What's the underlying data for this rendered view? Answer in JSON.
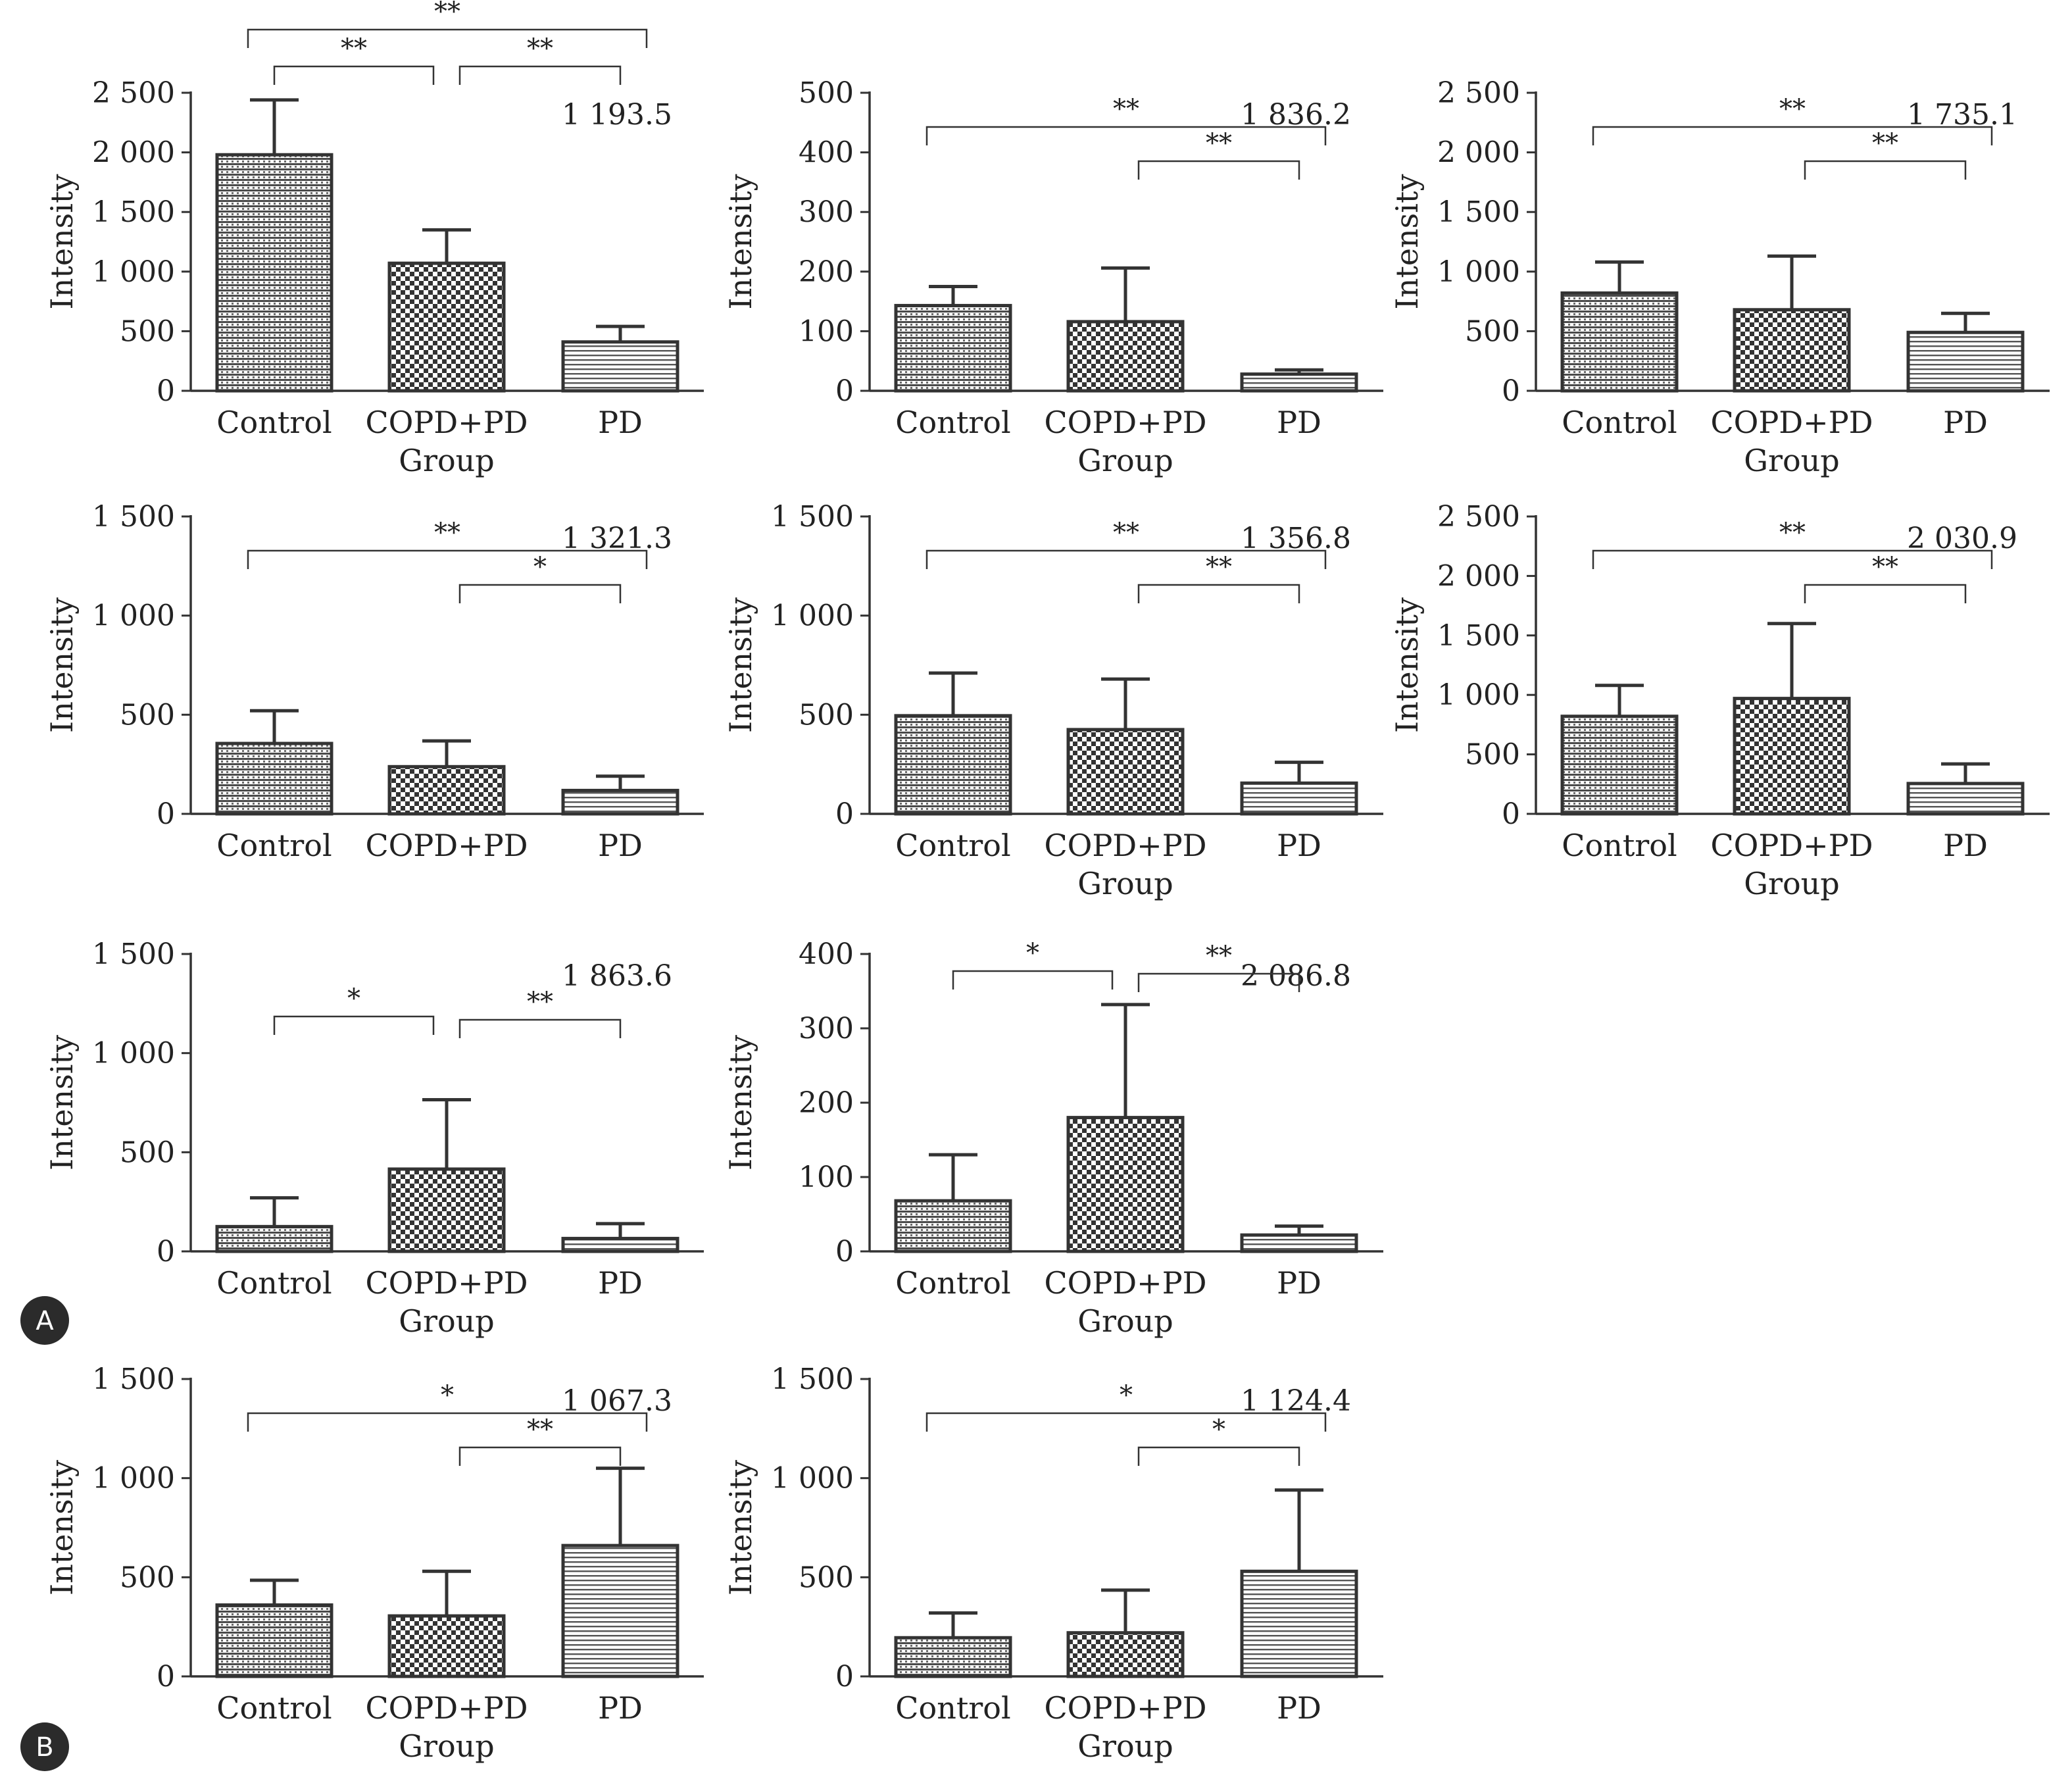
{
  "colors": {
    "ink": "#333333",
    "dots": "#3a3a3a",
    "bg": "#ffffff"
  },
  "panel_labels": [
    "A",
    "B"
  ],
  "chart_data": [
    {
      "type": "bar",
      "categories": [
        "Control",
        "COPD+PD",
        "PD"
      ],
      "xlabel": "Group",
      "ylabel": "Intensity",
      "ylim": [
        0,
        2500
      ],
      "yticks": [
        0,
        500,
        1000,
        1500,
        2000,
        2500
      ],
      "yticklabels": [
        "0",
        "500",
        "1 000",
        "1 500",
        "2 000",
        "2 500"
      ],
      "values": [
        1980,
        1070,
        410
      ],
      "errors": [
        460,
        280,
        130
      ],
      "annotation": "1 193.5",
      "significance": [
        {
          "from": 0,
          "to": 2,
          "label": "**"
        },
        {
          "from": 0,
          "to": 1,
          "label": "**"
        },
        {
          "from": 1,
          "to": 2,
          "label": "**"
        }
      ]
    },
    {
      "type": "bar",
      "categories": [
        "Control",
        "COPD+PD",
        "PD"
      ],
      "xlabel": "Group",
      "ylabel": "Intensity",
      "ylim": [
        0,
        500
      ],
      "yticks": [
        0,
        100,
        200,
        300,
        400,
        500
      ],
      "yticklabels": [
        "0",
        "100",
        "200",
        "300",
        "400",
        "500"
      ],
      "values": [
        143,
        116,
        28
      ],
      "errors": [
        32,
        90,
        7
      ],
      "annotation": "1 836.2",
      "significance": [
        {
          "from": 0,
          "to": 2,
          "label": "**"
        },
        {
          "from": 1,
          "to": 2,
          "label": "**"
        }
      ]
    },
    {
      "type": "bar",
      "categories": [
        "Control",
        "COPD+PD",
        "PD"
      ],
      "xlabel": "Group",
      "ylabel": "Intensity",
      "ylim": [
        0,
        2500
      ],
      "yticks": [
        0,
        500,
        1000,
        1500,
        2000,
        2500
      ],
      "yticklabels": [
        "0",
        "500",
        "1 000",
        "1 500",
        "2 000",
        "2 500"
      ],
      "values": [
        820,
        680,
        490
      ],
      "errors": [
        260,
        450,
        160
      ],
      "annotation": "1 735.1",
      "significance": [
        {
          "from": 0,
          "to": 2,
          "label": "**"
        },
        {
          "from": 1,
          "to": 2,
          "label": "**"
        }
      ]
    },
    {
      "type": "bar",
      "categories": [
        "Control",
        "COPD+PD",
        "PD"
      ],
      "xlabel": "",
      "ylabel": "Intensity",
      "ylim": [
        0,
        1500
      ],
      "yticks": [
        0,
        500,
        1000,
        1500
      ],
      "yticklabels": [
        "0",
        "500",
        "1 000",
        "1 500"
      ],
      "values": [
        355,
        238,
        118
      ],
      "errors": [
        165,
        130,
        72
      ],
      "annotation": "1 321.3",
      "significance": [
        {
          "from": 0,
          "to": 2,
          "label": "**"
        },
        {
          "from": 1,
          "to": 2,
          "label": "*"
        }
      ]
    },
    {
      "type": "bar",
      "categories": [
        "Control",
        "COPD+PD",
        "PD"
      ],
      "xlabel": "Group",
      "ylabel": "Intensity",
      "ylim": [
        0,
        1500
      ],
      "yticks": [
        0,
        500,
        1000,
        1500
      ],
      "yticklabels": [
        "0",
        "500",
        "1 000",
        "1 500"
      ],
      "values": [
        495,
        425,
        155
      ],
      "errors": [
        215,
        255,
        105
      ],
      "annotation": "1 356.8",
      "significance": [
        {
          "from": 0,
          "to": 2,
          "label": "**"
        },
        {
          "from": 1,
          "to": 2,
          "label": "**"
        }
      ]
    },
    {
      "type": "bar",
      "categories": [
        "Control",
        "COPD+PD",
        "PD"
      ],
      "xlabel": "Group",
      "ylabel": "Intensity",
      "ylim": [
        0,
        2500
      ],
      "yticks": [
        0,
        500,
        1000,
        1500,
        2000,
        2500
      ],
      "yticklabels": [
        "0",
        "500",
        "1 000",
        "1 500",
        "2 000",
        "2 500"
      ],
      "values": [
        820,
        970,
        255
      ],
      "errors": [
        260,
        630,
        165
      ],
      "annotation": "2 030.9",
      "significance": [
        {
          "from": 0,
          "to": 2,
          "label": "**"
        },
        {
          "from": 1,
          "to": 2,
          "label": "**"
        }
      ]
    },
    {
      "type": "bar",
      "categories": [
        "Control",
        "COPD+PD",
        "PD"
      ],
      "xlabel": "Group",
      "ylabel": "Intensity",
      "ylim": [
        0,
        1500
      ],
      "yticks": [
        0,
        500,
        1000,
        1500
      ],
      "yticklabels": [
        "0",
        "500",
        "1 000",
        "1 500"
      ],
      "values": [
        125,
        415,
        65
      ],
      "errors": [
        145,
        350,
        75
      ],
      "annotation": "1 863.6",
      "significance": [
        {
          "from": 0,
          "to": 1,
          "label": "*"
        },
        {
          "from": 1,
          "to": 2,
          "label": "**"
        }
      ]
    },
    {
      "type": "bar",
      "categories": [
        "Control",
        "COPD+PD",
        "PD"
      ],
      "xlabel": "Group",
      "ylabel": "Intensity",
      "ylim": [
        0,
        400
      ],
      "yticks": [
        0,
        100,
        200,
        300,
        400
      ],
      "yticklabels": [
        "0",
        "100",
        "200",
        "300",
        "400"
      ],
      "values": [
        68,
        180,
        22
      ],
      "errors": [
        62,
        152,
        12
      ],
      "annotation": "2 086.8",
      "significance": [
        {
          "from": 0,
          "to": 1,
          "label": "*"
        },
        {
          "from": 1,
          "to": 2,
          "label": "**"
        }
      ]
    },
    {
      "type": "bar",
      "categories": [
        "Control",
        "COPD+PD",
        "PD"
      ],
      "xlabel": "Group",
      "ylabel": "Intensity",
      "ylim": [
        0,
        1500
      ],
      "yticks": [
        0,
        500,
        1000,
        1500
      ],
      "yticklabels": [
        "0",
        "500",
        "1 000",
        "1 500"
      ],
      "values": [
        360,
        305,
        660
      ],
      "errors": [
        125,
        225,
        390
      ],
      "annotation": "1 067.3",
      "significance": [
        {
          "from": 0,
          "to": 2,
          "label": "*"
        },
        {
          "from": 1,
          "to": 2,
          "label": "**"
        }
      ]
    },
    {
      "type": "bar",
      "categories": [
        "Control",
        "COPD+PD",
        "PD"
      ],
      "xlabel": "Group",
      "ylabel": "Intensity",
      "ylim": [
        0,
        1500
      ],
      "yticks": [
        0,
        500,
        1000,
        1500
      ],
      "yticklabels": [
        "0",
        "500",
        "1 000",
        "1 500"
      ],
      "values": [
        195,
        220,
        530
      ],
      "errors": [
        125,
        215,
        410
      ],
      "annotation": "1 124.4",
      "significance": [
        {
          "from": 0,
          "to": 2,
          "label": "*"
        },
        {
          "from": 1,
          "to": 2,
          "label": "*"
        }
      ]
    }
  ]
}
